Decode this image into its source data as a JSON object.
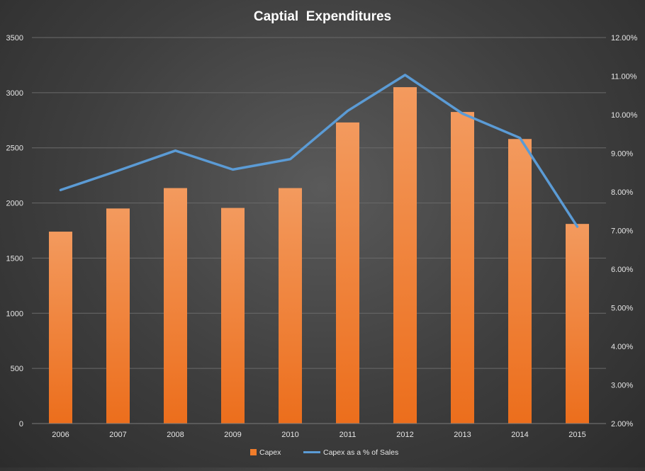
{
  "chart_data": {
    "type": "bar",
    "title": "Captial  Expenditures",
    "categories": [
      "2006",
      "2007",
      "2008",
      "2009",
      "2010",
      "2011",
      "2012",
      "2013",
      "2014",
      "2015"
    ],
    "series": [
      {
        "name": "Capex",
        "type": "bar",
        "axis": "left",
        "color": "#f07c2a",
        "values": [
          1740,
          1950,
          2135,
          1955,
          2135,
          2730,
          3050,
          2825,
          2580,
          1810
        ]
      },
      {
        "name": "Capex as a % of Sales",
        "type": "line",
        "axis": "right",
        "color": "#5b9bd5",
        "values": [
          0.0805,
          0.0855,
          0.0907,
          0.0858,
          0.0885,
          0.101,
          0.1103,
          0.1003,
          0.094,
          0.071
        ]
      }
    ],
    "y_left": {
      "min": 0,
      "max": 3500,
      "ticks": [
        "0",
        "500",
        "1000",
        "1500",
        "2000",
        "2500",
        "3000",
        "3500"
      ]
    },
    "y_right": {
      "min": 0.02,
      "max": 0.12,
      "ticks": [
        "2.00%",
        "3.00%",
        "4.00%",
        "5.00%",
        "6.00%",
        "7.00%",
        "8.00%",
        "9.00%",
        "10.00%",
        "11.00%",
        "12.00%"
      ]
    },
    "grid": true,
    "legend_position": "bottom"
  }
}
